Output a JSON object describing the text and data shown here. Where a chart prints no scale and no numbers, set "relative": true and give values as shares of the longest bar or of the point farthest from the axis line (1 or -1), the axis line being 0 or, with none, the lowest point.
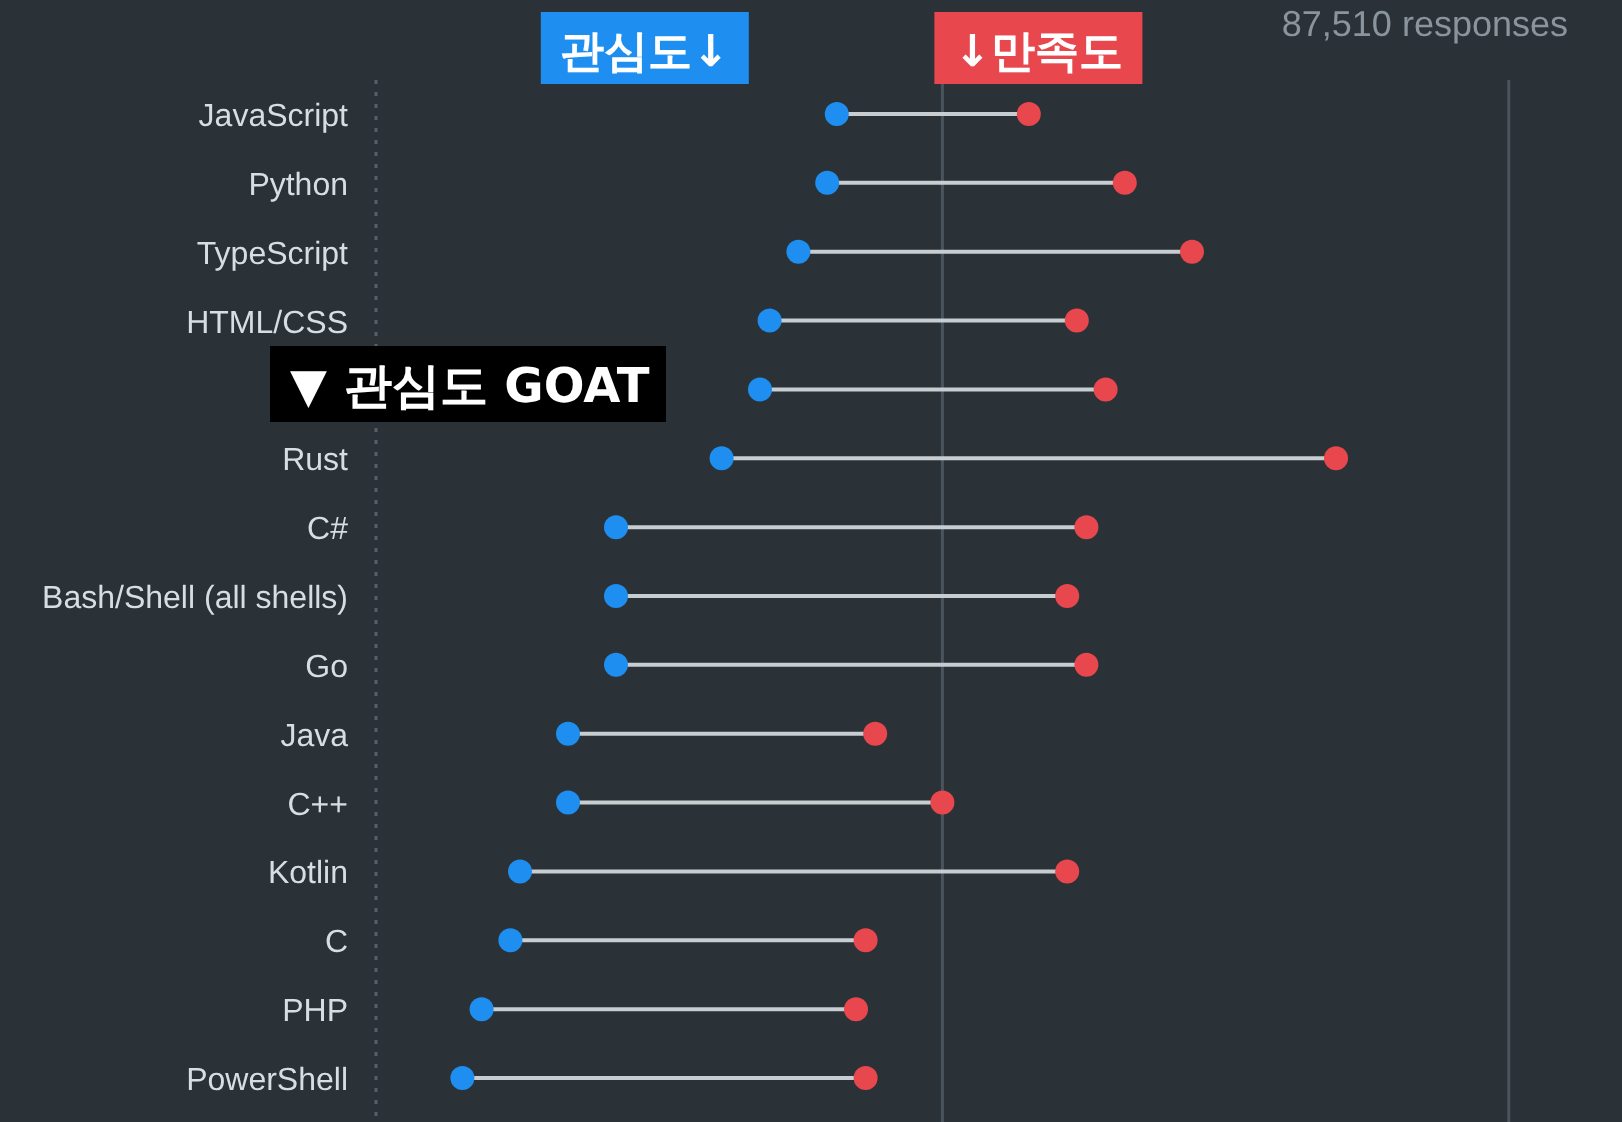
{
  "chart_data": {
    "type": "scatter",
    "orientation": "horizontal",
    "relative": true,
    "subtitle": "87,510 responses",
    "legend": "top",
    "categories": [
      "JavaScript",
      "Python",
      "TypeScript",
      "HTML/CSS",
      null,
      "Rust",
      "C#",
      "Bash/Shell (all shells)",
      "Go",
      "Java",
      "C++",
      "Kotlin",
      "C",
      "PHP",
      "PowerShell"
    ],
    "series": [
      {
        "name": "관심도↓",
        "color": "#1e8ff0",
        "values": [
          0.48,
          0.47,
          0.44,
          0.41,
          0.4,
          0.36,
          0.25,
          0.25,
          0.25,
          0.2,
          0.2,
          0.15,
          0.14,
          0.11,
          0.09
        ]
      },
      {
        "name": "↓만족도",
        "color": "#e8474e",
        "values": [
          0.68,
          0.78,
          0.85,
          0.73,
          0.76,
          1,
          0.74,
          0.72,
          0.74,
          0.52,
          0.59,
          0.72,
          0.51,
          0.5,
          0.51
        ]
      }
    ],
    "ref_lines": [
      {
        "axis": "x",
        "value": 0,
        "line_style": "dotted",
        "color": "#56606a"
      },
      {
        "axis": "x",
        "value": 0.59,
        "line_style": "solid",
        "color": "#4a545d"
      },
      {
        "axis": "x",
        "value": 1.18,
        "line_style": "solid",
        "color": "#4a545d"
      }
    ],
    "annotations": [
      "▼ 관심도 GOAT"
    ]
  }
}
